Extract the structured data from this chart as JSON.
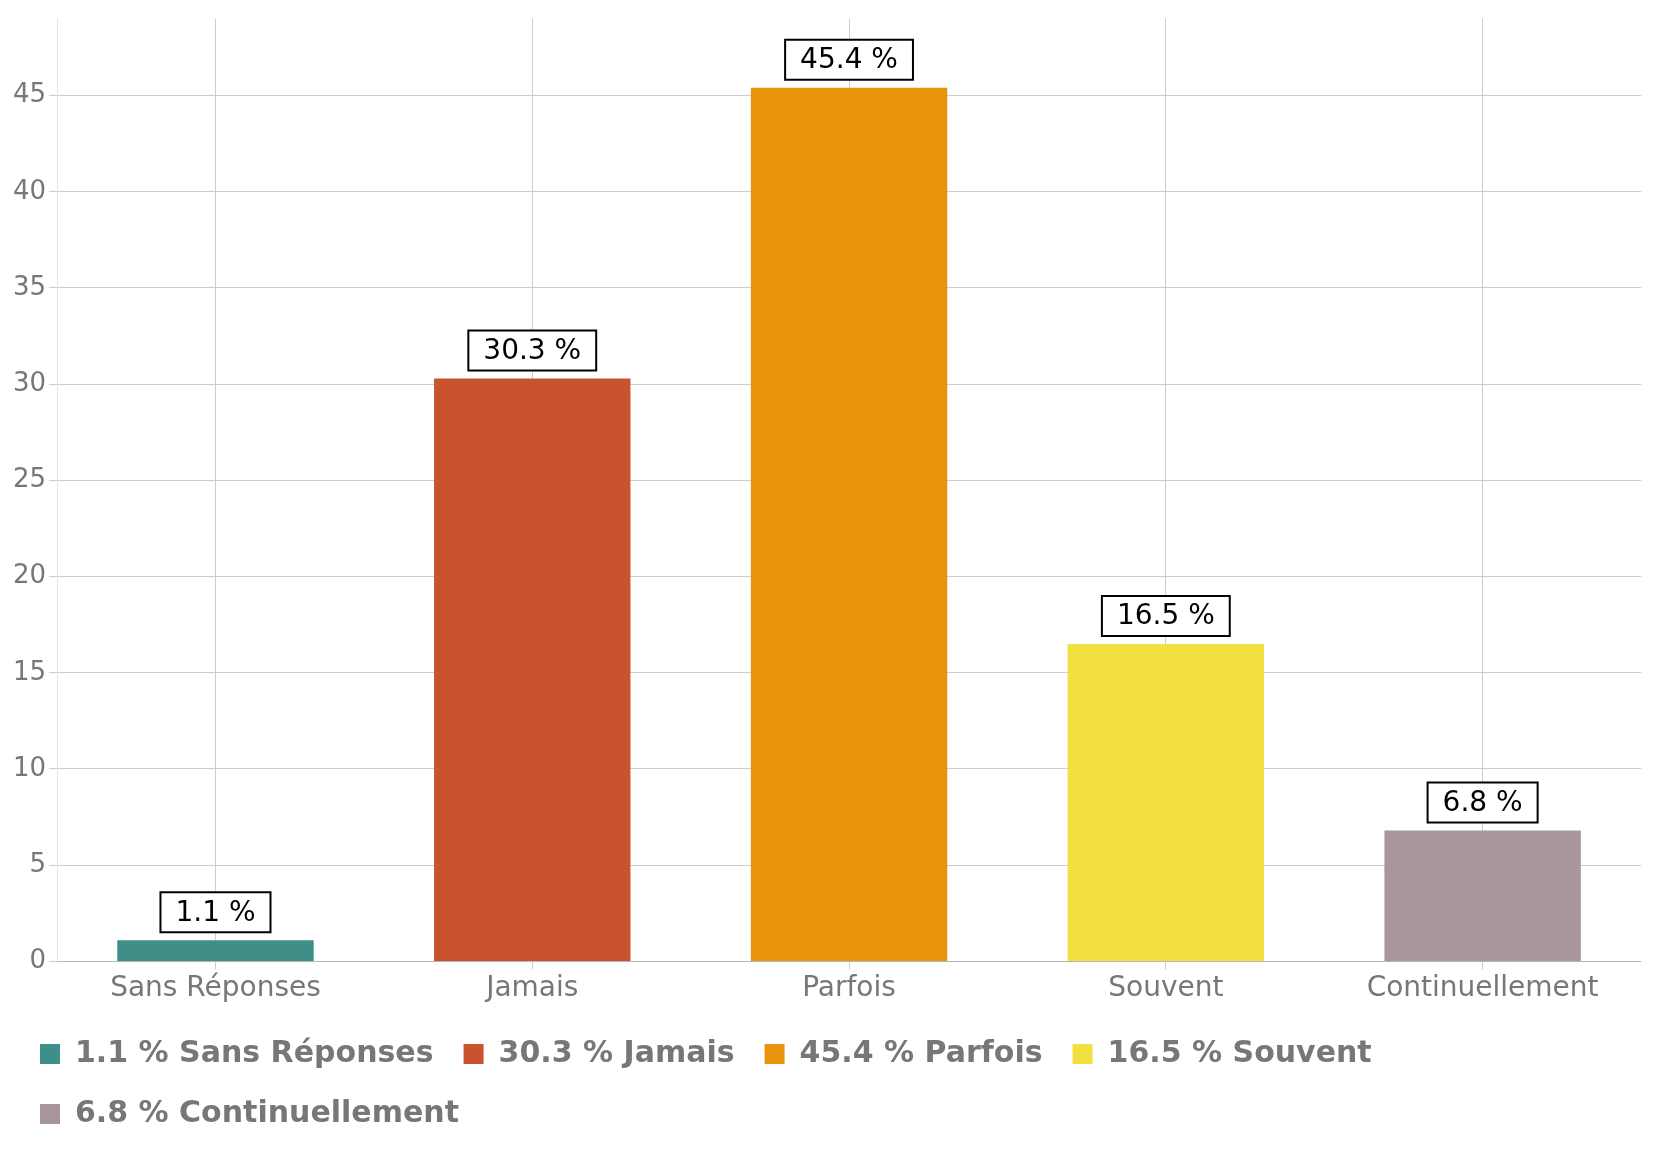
{
  "chart_data": {
    "type": "bar",
    "categories": [
      "Sans Réponses",
      "Jamais",
      "Parfois",
      "Souvent",
      "Continuellement"
    ],
    "series": [
      {
        "name": "1.1 % Sans Réponses",
        "color": "#3f8f88",
        "values": [
          1.1,
          null,
          null,
          null,
          null
        ],
        "value_labels": [
          "1.1 %",
          null,
          null,
          null,
          null
        ]
      },
      {
        "name": "30.3 % Jamais",
        "color": "#c9522f",
        "values": [
          null,
          30.3,
          null,
          null,
          null
        ],
        "value_labels": [
          null,
          "30.3 %",
          null,
          null,
          null
        ]
      },
      {
        "name": "45.4 % Parfois",
        "color": "#e8930c",
        "values": [
          null,
          null,
          45.4,
          null,
          null
        ],
        "value_labels": [
          null,
          null,
          "45.4 %",
          null,
          null
        ]
      },
      {
        "name": "16.5 % Souvent",
        "color": "#f2e040",
        "values": [
          null,
          null,
          null,
          16.5,
          null
        ],
        "value_labels": [
          null,
          null,
          null,
          "16.5 %",
          null
        ]
      },
      {
        "name": "6.8 % Continuellement",
        "color": "#a8969e",
        "values": [
          null,
          null,
          null,
          null,
          6.8
        ],
        "value_labels": [
          null,
          null,
          null,
          null,
          "6.8 %"
        ]
      }
    ],
    "ylim": [
      0,
      49
    ],
    "yticks": [
      0,
      5,
      10,
      15,
      20,
      25,
      30,
      35,
      40,
      45
    ],
    "grid": true,
    "legend": "bottom"
  }
}
